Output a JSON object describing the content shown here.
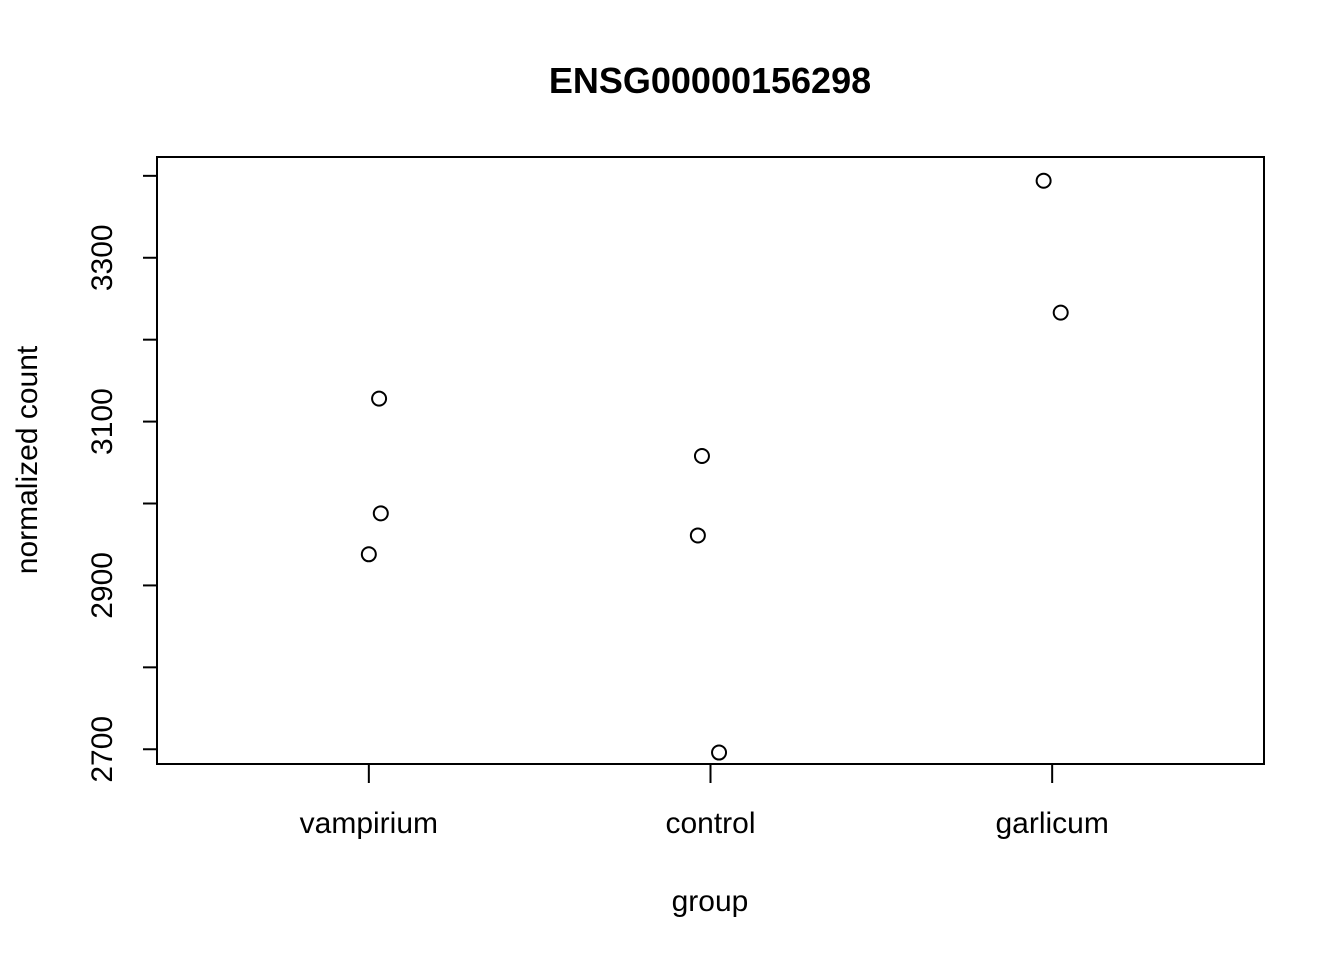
{
  "chart_data": {
    "type": "scatter",
    "title": "ENSG00000156298",
    "xlabel": "group",
    "ylabel": "normalized count",
    "categories": [
      "vampirium",
      "control",
      "garlicum"
    ],
    "y_ticks": [
      2700,
      2900,
      3100,
      3300
    ],
    "y_minor_ticks": [
      2800,
      3000,
      3200,
      3400
    ],
    "ylim": [
      2682,
      3423
    ],
    "grid": false,
    "jitter_note": "",
    "points": [
      {
        "category": "vampirium",
        "value": 3128,
        "jitter": 0.03
      },
      {
        "category": "vampirium",
        "value": 2988,
        "jitter": 0.035
      },
      {
        "category": "vampirium",
        "value": 2938,
        "jitter": 0.0
      },
      {
        "category": "control",
        "value": 3058,
        "jitter": -0.025
      },
      {
        "category": "control",
        "value": 2961,
        "jitter": -0.037
      },
      {
        "category": "control",
        "value": 2696,
        "jitter": 0.025
      },
      {
        "category": "garlicum",
        "value": 3394,
        "jitter": -0.025
      },
      {
        "category": "garlicum",
        "value": 3233,
        "jitter": 0.025
      }
    ]
  }
}
